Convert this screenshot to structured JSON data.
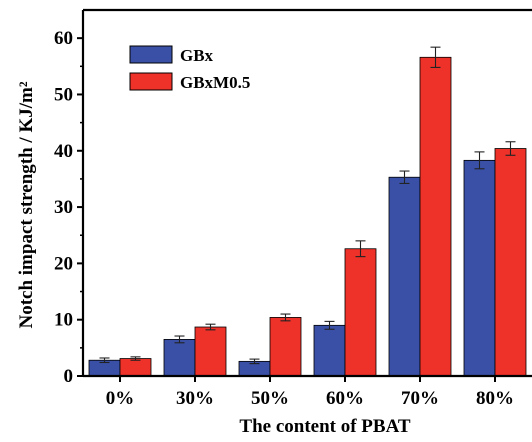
{
  "chart_data": {
    "type": "bar",
    "xlabel": "The content of PBAT",
    "ylabel": "Notch impact strength / KJ/m²",
    "categories": [
      "0%",
      "30%",
      "50%",
      "60%",
      "70%",
      "80%"
    ],
    "ylim": [
      0,
      65
    ],
    "yticks": [
      0,
      10,
      20,
      30,
      40,
      50,
      60
    ],
    "grid": false,
    "legend_position": "top-left",
    "series": [
      {
        "name": "GBx",
        "color": "#3a50a6",
        "values": [
          2.8,
          6.5,
          2.6,
          9.0,
          35.3,
          38.3
        ],
        "errors": [
          0.4,
          0.6,
          0.4,
          0.7,
          1.1,
          1.5
        ]
      },
      {
        "name": "GBxM0.5",
        "color": "#ee3129",
        "values": [
          3.1,
          8.7,
          10.4,
          22.6,
          56.6,
          40.4
        ],
        "errors": [
          0.3,
          0.5,
          0.6,
          1.4,
          1.8,
          1.2
        ]
      }
    ]
  }
}
